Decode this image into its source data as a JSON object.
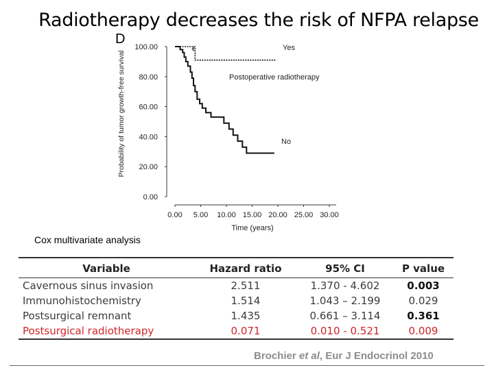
{
  "title": "Radiotherapy decreases the risk of NFPA relapse",
  "panel_letter": "D",
  "chart_data": {
    "type": "line",
    "title": "",
    "ylabel": "Probability of tumor growth-free survival",
    "xlabel": "Time (years)",
    "xlim": [
      0,
      30
    ],
    "ylim": [
      0,
      100
    ],
    "xticks": [
      "0.00",
      "5.00",
      "10.00",
      "15.00",
      "20.00",
      "25.00",
      "30.00"
    ],
    "yticks": [
      "0.00",
      "20.00",
      "40.00",
      "60.00",
      "80.00",
      "100.00"
    ],
    "legend_label": "Postoperative radiotherapy",
    "series": [
      {
        "name": "Yes",
        "points": [
          [
            0,
            100
          ],
          [
            3.4,
            100
          ],
          [
            3.4,
            97.5
          ],
          [
            3.6,
            97.5
          ],
          [
            3.6,
            100
          ],
          [
            3.9,
            100
          ],
          [
            3.9,
            91
          ],
          [
            19.5,
            91
          ]
        ]
      },
      {
        "name": "No",
        "points": [
          [
            0,
            100
          ],
          [
            1,
            100
          ],
          [
            1,
            98
          ],
          [
            1.5,
            98
          ],
          [
            1.5,
            96
          ],
          [
            1.8,
            96
          ],
          [
            1.8,
            93
          ],
          [
            2.1,
            93
          ],
          [
            2.1,
            90
          ],
          [
            2.5,
            90
          ],
          [
            2.5,
            87
          ],
          [
            3,
            87
          ],
          [
            3,
            83
          ],
          [
            3.3,
            83
          ],
          [
            3.3,
            79
          ],
          [
            3.6,
            79
          ],
          [
            3.6,
            74
          ],
          [
            3.9,
            74
          ],
          [
            3.9,
            70
          ],
          [
            4.3,
            70
          ],
          [
            4.3,
            65
          ],
          [
            4.8,
            65
          ],
          [
            4.8,
            62
          ],
          [
            5.3,
            62
          ],
          [
            5.3,
            59
          ],
          [
            6,
            59
          ],
          [
            6,
            56
          ],
          [
            7,
            56
          ],
          [
            7,
            53
          ],
          [
            9.5,
            53
          ],
          [
            9.5,
            49
          ],
          [
            10.5,
            49
          ],
          [
            10.5,
            45
          ],
          [
            11.3,
            45
          ],
          [
            11.3,
            41
          ],
          [
            12.2,
            41
          ],
          [
            12.2,
            37
          ],
          [
            13.1,
            37
          ],
          [
            13.1,
            33
          ],
          [
            13.9,
            33
          ],
          [
            13.9,
            29
          ],
          [
            19.3,
            29
          ]
        ]
      }
    ]
  },
  "table_caption": "Cox multivariate analysis",
  "table": {
    "headers": [
      "Variable",
      "Hazard ratio",
      "95% CI",
      "P value"
    ],
    "rows": [
      [
        "Cavernous sinus invasion",
        "2.511",
        "1.370 - 4.602",
        "0.003"
      ],
      [
        "Immunohistochemistry",
        "1.514",
        "1.043 – 2.199",
        "0.029"
      ],
      [
        "Postsurgical remnant",
        "1.435",
        "0.661 – 3.114",
        "0.361"
      ],
      [
        "Postsurgical radiotherapy",
        "0.071",
        "0.010 - 0.521",
        "0.009"
      ]
    ]
  },
  "citation": {
    "author": "Brochier ",
    "etal": "et al",
    "rest": ", Eur J Endocrinol 2010"
  },
  "colors": {
    "highlight_row": "#d0242a",
    "citation_text": "#8c8c8c",
    "line": "#111111"
  }
}
